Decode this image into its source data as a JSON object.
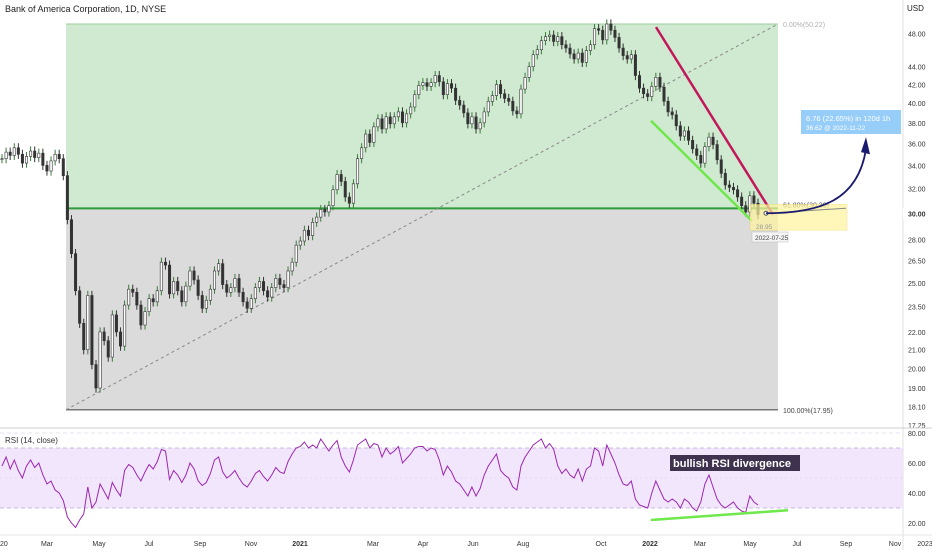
{
  "header": {
    "title": "Bank of America Corporation, 1D, NYSE",
    "currency": "USD"
  },
  "chart_data": [
    {
      "type": "line",
      "panel": "price",
      "title": "Bank of America Corporation, 1D, NYSE",
      "ylabel": "USD",
      "y_scale": "log",
      "ylim": [
        17.25,
        50.5
      ],
      "y_ticks": [
        "17.25",
        "18.10",
        "19.00",
        "20.00",
        "21.00",
        "22.00",
        "23.50",
        "25.00",
        "26.50",
        "28.00",
        "30.00",
        "32.00",
        "34.00",
        "36.00",
        "38.00",
        "40.00",
        "42.00",
        "44.00",
        "48.00"
      ],
      "x_ticks": [
        "20",
        "Mar",
        "May",
        "Jul",
        "Sep",
        "Nov",
        "2021",
        "Mar",
        "Apr",
        "Jun",
        "Aug",
        "Oct",
        "2022",
        "Mar",
        "May",
        "Jul",
        "Sep",
        "Nov",
        "2023"
      ],
      "x_ticks_bold": [
        "2021",
        "2022"
      ],
      "series": [
        {
          "values": [
            34.6,
            35.2,
            34.9,
            35.6,
            35.0,
            34.2,
            34.8,
            35.3,
            34.7,
            35.1,
            34.0,
            33.5,
            34.4,
            35.0,
            34.6,
            33.1,
            29.5,
            27.0,
            24.5,
            22.5,
            21.0,
            24.2,
            20.2,
            19.0,
            22.0,
            21.5,
            20.6,
            23.0,
            22.0,
            21.2,
            23.6,
            24.6,
            24.4,
            23.6,
            22.4,
            23.2,
            24.0,
            23.8,
            24.5,
            26.4,
            26.2,
            24.3,
            25.1,
            24.5,
            23.8,
            24.8,
            25.8,
            25.2,
            24.2,
            23.4,
            23.9,
            24.6,
            25.8,
            26.3,
            24.9,
            24.4,
            24.7,
            25.3,
            24.4,
            23.8,
            23.4,
            24.0,
            24.7,
            25.1,
            24.5,
            24.1,
            24.7,
            25.3,
            24.9,
            24.7,
            25.8,
            26.4,
            27.6,
            27.9,
            28.7,
            28.3,
            29.3,
            29.7,
            30.3,
            30.1,
            30.6,
            31.9,
            33.2,
            32.6,
            31.3,
            30.8,
            32.4,
            34.6,
            35.6,
            36.9,
            36.1,
            37.6,
            38.4,
            37.4,
            38.6,
            37.9,
            38.6,
            39.1,
            38.0,
            38.9,
            39.6,
            40.9,
            41.9,
            42.2,
            41.8,
            42.2,
            43.0,
            42.3,
            40.9,
            42.1,
            41.6,
            40.3,
            39.8,
            39.0,
            37.9,
            38.6,
            37.4,
            38.0,
            39.1,
            40.2,
            40.8,
            42.0,
            41.0,
            40.5,
            40.2,
            39.2,
            38.9,
            41.5,
            42.8,
            44.0,
            45.4,
            46.0,
            47.1,
            47.6,
            47.8,
            47.0,
            47.6,
            46.6,
            46.2,
            45.5,
            44.9,
            45.6,
            44.5,
            45.9,
            46.6,
            48.6,
            48.4,
            47.2,
            49.2,
            48.4,
            47.5,
            46.2,
            45.3,
            44.9,
            45.4,
            43.0,
            41.6,
            41.0,
            40.7,
            41.8,
            42.8,
            41.7,
            40.2,
            39.1,
            38.8,
            37.7,
            36.7,
            37.2,
            36.3,
            35.5,
            34.9,
            34.2,
            35.7,
            36.6,
            35.9,
            34.5,
            33.3,
            32.3,
            32.1,
            31.9,
            31.3,
            30.6,
            30.1,
            31.4,
            30.8,
            29.9
          ]
        }
      ],
      "annotations": {
        "fib_top_label": "0.00%(50.22)",
        "fib_mid_label": "61.80%(30.39)",
        "fib_bottom_label": "100.00%(17.95)",
        "fib_mid_value": 30.39,
        "current_price_marker": "30.00",
        "projection_box_line1": "6.76 (22.65%) in 120d 1h",
        "projection_box_line2": "36.62 @ 2022-11-22",
        "target_price": 36.62,
        "date_flag": "2022-07-25",
        "pivot_label": "28.95"
      }
    },
    {
      "type": "line",
      "panel": "indicator",
      "title": "RSI (14, close)",
      "ylim": [
        14,
        82
      ],
      "y_ticks": [
        "20.00",
        "40.00",
        "60.00",
        "80.00"
      ],
      "band": [
        30,
        70
      ],
      "series": [
        {
          "name": "RSI (14, close)",
          "values": [
            58,
            64,
            56,
            62,
            55,
            50,
            58,
            62,
            57,
            60,
            52,
            46,
            48,
            42,
            40,
            35,
            24,
            20,
            17,
            22,
            26,
            44,
            30,
            34,
            46,
            41,
            36,
            47,
            42,
            38,
            55,
            59,
            57,
            52,
            48,
            54,
            59,
            56,
            61,
            69,
            68,
            49,
            55,
            52,
            47,
            52,
            60,
            56,
            48,
            45,
            47,
            53,
            62,
            64,
            54,
            50,
            52,
            55,
            50,
            46,
            44,
            48,
            53,
            55,
            51,
            48,
            52,
            57,
            54,
            53,
            61,
            66,
            70,
            71,
            74,
            70,
            72,
            70,
            76,
            72,
            68,
            72,
            75,
            64,
            58,
            54,
            62,
            72,
            74,
            76,
            70,
            73,
            72,
            64,
            70,
            66,
            68,
            71,
            60,
            63,
            66,
            70,
            71,
            71,
            68,
            70,
            69,
            62,
            52,
            58,
            54,
            48,
            46,
            42,
            38,
            44,
            38,
            43,
            52,
            58,
            62,
            66,
            55,
            52,
            50,
            44,
            42,
            58,
            64,
            68,
            72,
            74,
            76,
            70,
            73,
            69,
            58,
            53,
            56,
            52,
            50,
            56,
            48,
            56,
            58,
            70,
            68,
            58,
            72,
            66,
            60,
            52,
            46,
            45,
            48,
            36,
            32,
            31,
            30,
            40,
            48,
            42,
            36,
            34,
            36,
            34,
            30,
            36,
            34,
            30,
            28,
            34,
            46,
            52,
            44,
            36,
            32,
            30,
            32,
            34,
            30,
            28,
            27,
            38,
            34,
            32
          ]
        }
      ],
      "annotations": {
        "divergence_label": "bullish RSI divergence"
      }
    }
  ]
}
